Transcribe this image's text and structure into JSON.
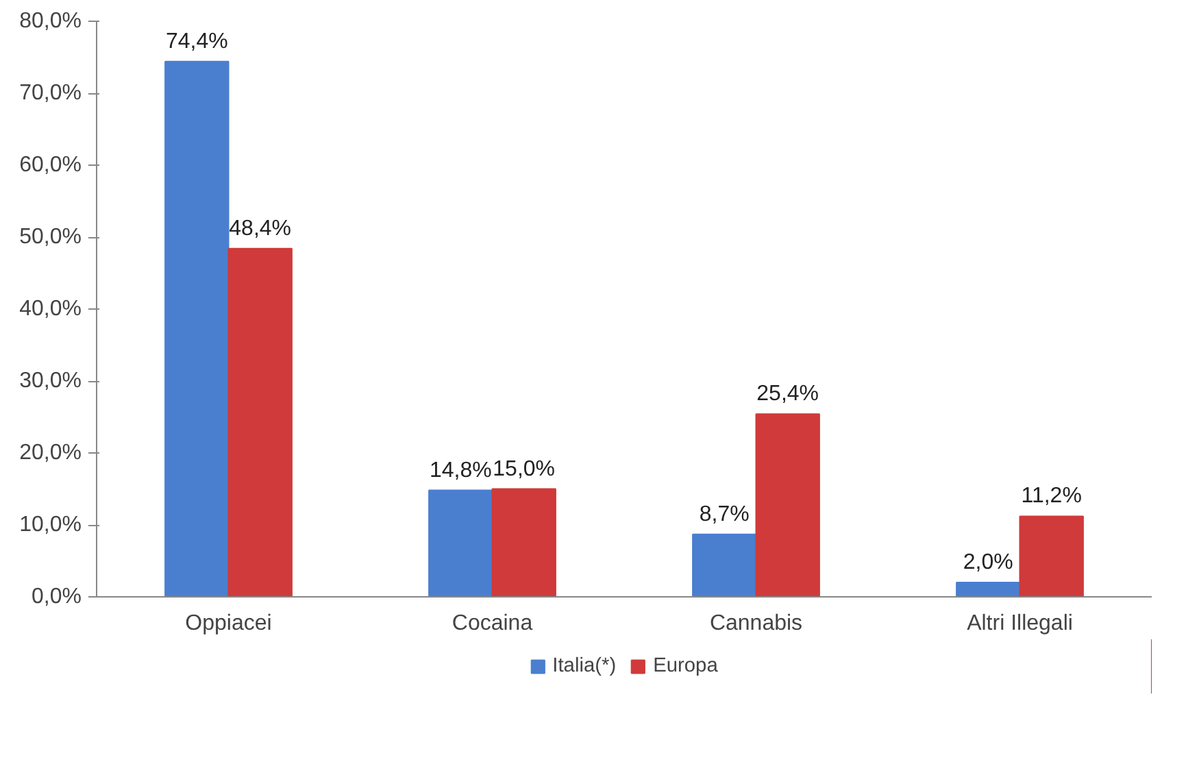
{
  "chart_data": {
    "type": "bar",
    "categories": [
      "Oppiacei",
      "Cocaina",
      "Cannabis",
      "Altri Illegali"
    ],
    "series": [
      {
        "name": "Italia(*)",
        "color": "#4a7fd0",
        "values": [
          74.4,
          14.8,
          8.7,
          2.0
        ],
        "value_labels": [
          "74,4%",
          "14,8%",
          "8,7%",
          "2,0%"
        ]
      },
      {
        "name": "Europa",
        "color": "#d03a3a",
        "values": [
          48.4,
          15.0,
          25.4,
          11.2
        ],
        "value_labels": [
          "48,4%",
          "15,0%",
          "25,4%",
          "11,2%"
        ]
      }
    ],
    "ylim": [
      0,
      80
    ],
    "yticks": [
      {
        "value": 0,
        "label": "0,0%"
      },
      {
        "value": 10,
        "label": "10,0%"
      },
      {
        "value": 20,
        "label": "20,0%"
      },
      {
        "value": 30,
        "label": "30,0%"
      },
      {
        "value": 40,
        "label": "40,0%"
      },
      {
        "value": 50,
        "label": "50,0%"
      },
      {
        "value": 60,
        "label": "60,0%"
      },
      {
        "value": 70,
        "label": "70,0%"
      },
      {
        "value": 80,
        "label": "80,0%"
      }
    ],
    "grid": false,
    "legend": "bottom"
  }
}
